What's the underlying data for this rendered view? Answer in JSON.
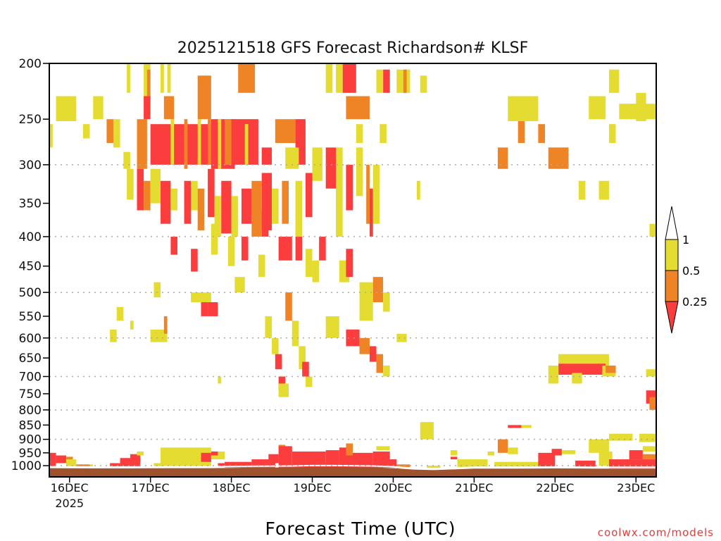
{
  "chart_data": {
    "type": "heatmap",
    "title": "2025121518 GFS Forecast Richardson# KLSF",
    "xlabel": "Forecast Time (UTC)",
    "ylabel": "",
    "credit": "coolwx.com/models",
    "x_units": "forecast hours from 2025-12-15 18Z",
    "xlim": [
      0,
      180
    ],
    "y_units": "hPa",
    "y_scale": "log",
    "ylim": [
      200,
      1046
    ],
    "y_ticks": [
      "200",
      "250",
      "300",
      "350",
      "400",
      "450",
      "500",
      "550",
      "600",
      "650",
      "700",
      "750",
      "800",
      "850",
      "900",
      "950",
      "1000"
    ],
    "y_gridlines": [
      300,
      400,
      500,
      600,
      700,
      800,
      900,
      1000
    ],
    "x_ticks": [
      {
        "hour": 6,
        "label": "16DEC",
        "sublabel": "2025"
      },
      {
        "hour": 30,
        "label": "17DEC"
      },
      {
        "hour": 54,
        "label": "18DEC"
      },
      {
        "hour": 78,
        "label": "19DEC"
      },
      {
        "hour": 102,
        "label": "20DEC"
      },
      {
        "hour": 126,
        "label": "21DEC"
      },
      {
        "hour": 150,
        "label": "22DEC"
      },
      {
        "hour": 174,
        "label": "23DEC"
      }
    ],
    "legend": {
      "placement": "right",
      "labels": [
        "1",
        "0.5",
        "0.25"
      ],
      "categories": [
        {
          "name": "< 0.25",
          "color": "#fc3d3e"
        },
        {
          "name": "0.25-0.5",
          "color": "#ef8427"
        },
        {
          "name": "0.5-1",
          "color": "#e5dc32"
        }
      ]
    },
    "ground_color": "#a0522d",
    "surface_pressure": {
      "hours": [
        0,
        12,
        24,
        36,
        48,
        60,
        72,
        78,
        84,
        90,
        96,
        102,
        108,
        114,
        120,
        126,
        138,
        150,
        162,
        174,
        180
      ],
      "hPa": [
        1010,
        1011,
        1011,
        1010,
        1010,
        1008,
        1007,
        1005,
        1005,
        1006,
        1007,
        1010,
        1016,
        1018,
        1015,
        1012,
        1012,
        1011,
        1012,
        1012,
        1012
      ]
    },
    "cells_format": "[hour_start, hour_end, p_top_hPa, p_bottom_hPa, category_index]",
    "cells": [
      [
        2,
        8,
        228,
        252,
        2
      ],
      [
        0,
        1,
        255,
        280,
        2
      ],
      [
        13,
        16,
        228,
        250,
        2
      ],
      [
        10,
        12,
        255,
        270,
        2
      ],
      [
        17,
        19,
        250,
        275,
        1
      ],
      [
        19,
        21,
        250,
        280,
        2
      ],
      [
        22,
        24,
        285,
        305,
        2
      ],
      [
        23,
        24,
        200,
        225,
        2
      ],
      [
        28,
        30,
        200,
        230,
        2
      ],
      [
        29,
        30,
        205,
        230,
        1
      ],
      [
        33,
        34,
        200,
        225,
        2
      ],
      [
        35,
        36,
        200,
        225,
        2
      ],
      [
        28,
        30,
        228,
        250,
        0
      ],
      [
        26,
        29,
        250,
        305,
        1
      ],
      [
        30,
        52,
        255,
        300,
        0
      ],
      [
        36,
        37,
        250,
        300,
        2
      ],
      [
        40,
        41,
        250,
        305,
        1
      ],
      [
        44,
        45,
        250,
        300,
        2
      ],
      [
        47,
        48,
        250,
        300,
        1
      ],
      [
        34,
        37,
        228,
        250,
        1
      ],
      [
        44,
        48,
        210,
        250,
        1
      ],
      [
        48,
        55,
        250,
        305,
        0
      ],
      [
        50,
        51,
        250,
        305,
        2
      ],
      [
        54,
        62,
        250,
        300,
        0
      ],
      [
        52,
        54,
        250,
        300,
        1
      ],
      [
        58,
        59,
        255,
        300,
        2
      ],
      [
        56,
        61,
        200,
        225,
        1
      ],
      [
        63,
        66,
        280,
        300,
        0
      ],
      [
        67,
        73,
        250,
        275,
        1
      ],
      [
        73,
        76,
        250,
        300,
        0
      ],
      [
        70,
        74,
        280,
        305,
        2
      ],
      [
        78,
        81,
        280,
        320,
        2
      ],
      [
        82,
        85,
        280,
        330,
        0
      ],
      [
        82,
        84,
        200,
        225,
        2
      ],
      [
        87,
        91,
        200,
        225,
        0
      ],
      [
        85,
        87,
        200,
        225,
        2
      ],
      [
        88,
        95,
        228,
        250,
        1
      ],
      [
        99,
        101,
        205,
        225,
        0
      ],
      [
        97,
        99,
        205,
        225,
        2
      ],
      [
        103,
        107,
        205,
        225,
        2
      ],
      [
        105,
        106,
        205,
        225,
        1
      ],
      [
        110,
        112,
        210,
        225,
        2
      ],
      [
        91,
        93,
        255,
        275,
        2
      ],
      [
        98,
        100,
        255,
        275,
        2
      ],
      [
        85,
        87,
        280,
        400,
        2
      ],
      [
        88,
        90,
        300,
        360,
        0
      ],
      [
        91,
        93,
        280,
        340,
        2
      ],
      [
        94,
        95,
        300,
        380,
        1
      ],
      [
        95,
        96,
        330,
        400,
        0
      ],
      [
        96,
        98,
        300,
        380,
        2
      ],
      [
        23,
        25,
        305,
        345,
        2
      ],
      [
        26,
        28,
        305,
        360,
        0
      ],
      [
        28,
        30,
        320,
        360,
        1
      ],
      [
        30,
        33,
        305,
        350,
        2
      ],
      [
        33,
        36,
        320,
        380,
        0
      ],
      [
        36,
        38,
        330,
        360,
        2
      ],
      [
        40,
        42,
        320,
        380,
        0
      ],
      [
        42,
        44,
        320,
        360,
        2
      ],
      [
        44,
        46,
        330,
        390,
        1
      ],
      [
        47,
        49,
        305,
        370,
        0
      ],
      [
        49,
        51,
        340,
        400,
        2
      ],
      [
        51,
        54,
        320,
        395,
        0
      ],
      [
        54,
        56,
        340,
        400,
        2
      ],
      [
        57,
        60,
        330,
        380,
        0
      ],
      [
        60,
        63,
        320,
        400,
        1
      ],
      [
        63,
        66,
        310,
        390,
        0
      ],
      [
        66,
        68,
        330,
        380,
        2
      ],
      [
        69,
        71,
        320,
        380,
        1
      ],
      [
        73,
        75,
        320,
        400,
        2
      ],
      [
        76,
        78,
        310,
        370,
        0
      ],
      [
        36,
        38,
        400,
        430,
        0
      ],
      [
        42,
        44,
        420,
        460,
        0
      ],
      [
        48,
        50,
        380,
        430,
        2
      ],
      [
        53,
        55,
        400,
        450,
        2
      ],
      [
        57,
        59,
        400,
        440,
        0
      ],
      [
        63,
        65,
        360,
        400,
        0
      ],
      [
        42,
        48,
        500,
        520,
        2
      ],
      [
        45,
        47,
        520,
        550,
        0
      ],
      [
        47,
        50,
        520,
        550,
        0
      ],
      [
        55,
        58,
        470,
        500,
        2
      ],
      [
        62,
        64,
        430,
        470,
        2
      ],
      [
        64,
        66,
        550,
        600,
        2
      ],
      [
        66,
        68,
        600,
        640,
        2
      ],
      [
        67,
        69,
        640,
        680,
        0
      ],
      [
        68,
        70,
        700,
        740,
        0
      ],
      [
        68,
        71,
        720,
        760,
        2
      ],
      [
        70,
        72,
        500,
        560,
        1
      ],
      [
        72,
        74,
        560,
        620,
        2
      ],
      [
        74,
        76,
        620,
        680,
        2
      ],
      [
        75,
        77,
        660,
        700,
        0
      ],
      [
        76,
        78,
        700,
        730,
        2
      ],
      [
        73,
        75,
        400,
        440,
        0
      ],
      [
        76,
        78,
        420,
        470,
        2
      ],
      [
        78,
        80,
        440,
        480,
        2
      ],
      [
        68,
        72,
        400,
        440,
        0
      ],
      [
        80,
        82,
        400,
        440,
        0
      ],
      [
        86,
        89,
        440,
        480,
        2
      ],
      [
        88,
        90,
        420,
        470,
        0
      ],
      [
        92,
        96,
        480,
        560,
        2
      ],
      [
        96,
        99,
        470,
        520,
        1
      ],
      [
        99,
        101,
        500,
        540,
        2
      ],
      [
        88,
        92,
        580,
        620,
        0
      ],
      [
        92,
        95,
        600,
        640,
        1
      ],
      [
        95,
        97,
        620,
        660,
        0
      ],
      [
        97,
        99,
        640,
        690,
        1
      ],
      [
        99,
        101,
        670,
        700,
        2
      ],
      [
        82,
        86,
        550,
        600,
        2
      ],
      [
        103,
        106,
        590,
        610,
        2
      ],
      [
        20,
        22,
        530,
        560,
        2
      ],
      [
        18,
        20,
        580,
        610,
        2
      ],
      [
        24,
        25,
        560,
        580,
        2
      ],
      [
        30,
        35,
        580,
        610,
        2
      ],
      [
        34,
        35,
        550,
        590,
        1
      ],
      [
        31,
        33,
        480,
        510,
        2
      ],
      [
        50,
        51,
        700,
        720,
        2
      ],
      [
        136,
        145,
        228,
        252,
        2
      ],
      [
        139,
        141,
        252,
        275,
        1
      ],
      [
        145,
        147,
        255,
        275,
        1
      ],
      [
        133,
        136,
        280,
        305,
        1
      ],
      [
        148,
        154,
        280,
        305,
        1
      ],
      [
        160,
        165,
        228,
        250,
        2
      ],
      [
        169,
        180,
        235,
        250,
        2
      ],
      [
        166,
        168,
        255,
        275,
        2
      ],
      [
        174,
        177,
        225,
        252,
        2
      ],
      [
        166,
        169,
        205,
        225,
        2
      ],
      [
        157,
        159,
        320,
        345,
        2
      ],
      [
        163,
        166,
        320,
        345,
        2
      ],
      [
        109,
        110,
        320,
        345,
        2
      ],
      [
        151,
        166,
        640,
        670,
        2
      ],
      [
        151,
        165,
        665,
        695,
        0
      ],
      [
        148,
        151,
        670,
        720,
        2
      ],
      [
        155,
        158,
        690,
        720,
        2
      ],
      [
        164,
        168,
        670,
        700,
        2
      ],
      [
        165,
        168,
        670,
        690,
        1
      ],
      [
        177,
        180,
        680,
        700,
        2
      ],
      [
        177,
        180,
        740,
        780,
        0
      ],
      [
        178,
        180,
        760,
        800,
        1
      ],
      [
        178,
        180,
        380,
        400,
        2
      ],
      [
        110,
        114,
        840,
        900,
        2
      ],
      [
        136,
        140,
        850,
        860,
        0
      ],
      [
        140,
        143,
        850,
        860,
        2
      ],
      [
        0,
        2,
        950,
        1005,
        0
      ],
      [
        2,
        5,
        960,
        990,
        0
      ],
      [
        5,
        7,
        965,
        985,
        1
      ],
      [
        5,
        8,
        975,
        1005,
        2
      ],
      [
        8,
        12,
        995,
        1005,
        1
      ],
      [
        12,
        13,
        995,
        1005,
        2
      ],
      [
        21,
        27,
        970,
        1005,
        0
      ],
      [
        24,
        27,
        955,
        985,
        0
      ],
      [
        26,
        28,
        945,
        960,
        2
      ],
      [
        18,
        21,
        990,
        1008,
        0
      ],
      [
        33,
        48,
        930,
        1002,
        2
      ],
      [
        31,
        34,
        990,
        1005,
        2
      ],
      [
        45,
        48,
        950,
        985,
        0
      ],
      [
        48,
        52,
        945,
        975,
        2
      ],
      [
        48,
        50,
        945,
        960,
        0
      ],
      [
        50,
        52,
        990,
        1005,
        0
      ],
      [
        52,
        60,
        985,
        1008,
        0
      ],
      [
        60,
        67,
        975,
        1008,
        0
      ],
      [
        65,
        68,
        955,
        990,
        0
      ],
      [
        68,
        70,
        920,
        950,
        1
      ],
      [
        68,
        72,
        925,
        1008,
        0
      ],
      [
        72,
        82,
        945,
        1008,
        0
      ],
      [
        82,
        86,
        940,
        1008,
        0
      ],
      [
        86,
        90,
        930,
        1008,
        0
      ],
      [
        88,
        90,
        915,
        960,
        1
      ],
      [
        90,
        96,
        950,
        1008,
        0
      ],
      [
        96,
        101,
        945,
        1008,
        0
      ],
      [
        100,
        103,
        975,
        1008,
        0
      ],
      [
        97,
        101,
        925,
        940,
        2
      ],
      [
        103,
        107,
        995,
        1010,
        1
      ],
      [
        112,
        116,
        1000,
        1012,
        2
      ],
      [
        119,
        121,
        940,
        960,
        2
      ],
      [
        119,
        121,
        965,
        975,
        0
      ],
      [
        121,
        130,
        975,
        1005,
        2
      ],
      [
        130,
        132,
        945,
        960,
        2
      ],
      [
        133,
        136,
        900,
        950,
        1
      ],
      [
        136,
        139,
        930,
        955,
        2
      ],
      [
        132,
        146,
        985,
        1005,
        2
      ],
      [
        145,
        150,
        950,
        1008,
        0
      ],
      [
        149,
        152,
        935,
        960,
        0
      ],
      [
        152,
        156,
        940,
        955,
        2
      ],
      [
        156,
        162,
        980,
        1008,
        0
      ],
      [
        163,
        167,
        945,
        1000,
        2
      ],
      [
        160,
        166,
        900,
        950,
        2
      ],
      [
        166,
        173,
        880,
        905,
        2
      ],
      [
        175,
        180,
        880,
        910,
        2
      ],
      [
        166,
        180,
        975,
        1010,
        0
      ],
      [
        172,
        176,
        940,
        975,
        0
      ],
      [
        176,
        180,
        955,
        975,
        1
      ],
      [
        176,
        180,
        925,
        945,
        2
      ]
    ]
  }
}
